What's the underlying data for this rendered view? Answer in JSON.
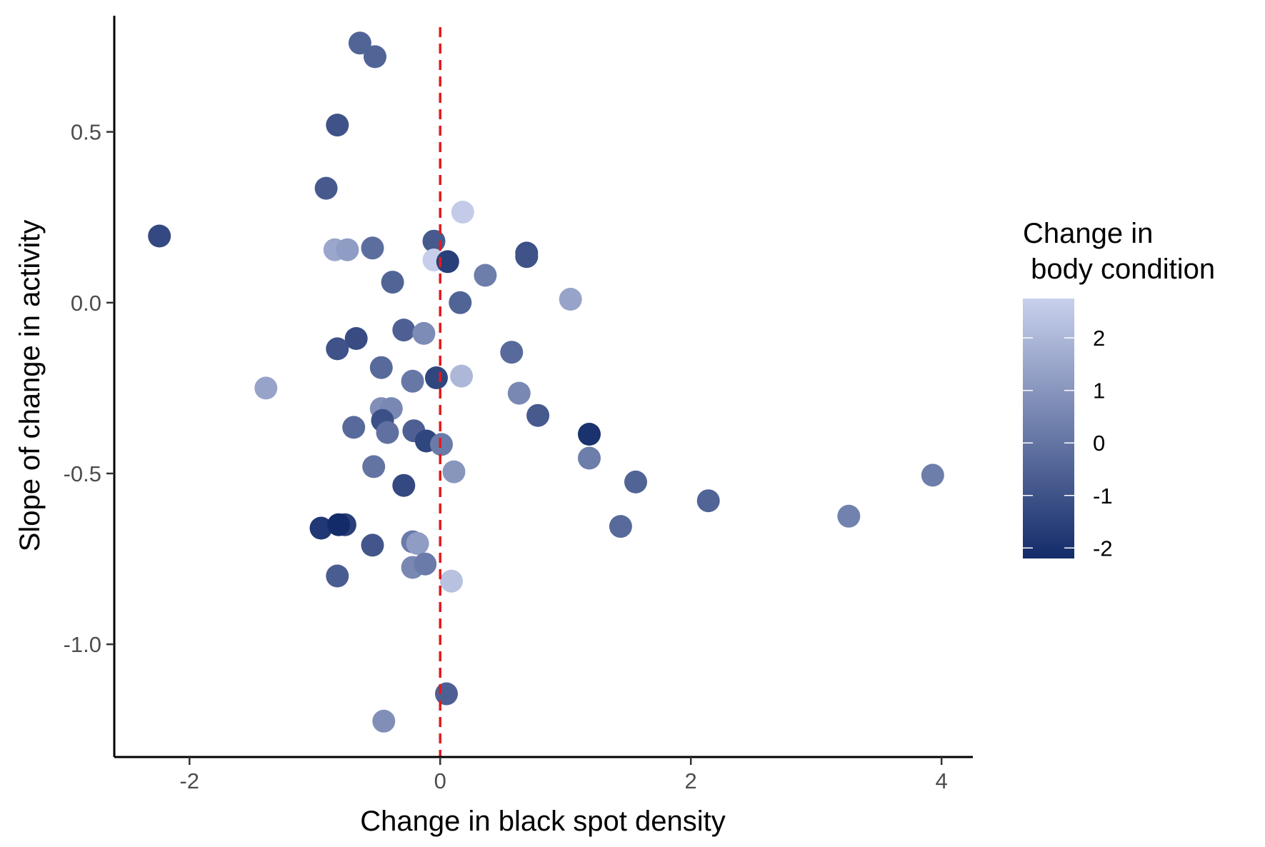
{
  "chart_data": {
    "type": "scatter",
    "xlabel": "Change in black spot density",
    "ylabel": "Slope of change in activity",
    "xlim": [
      -2.6,
      4.25
    ],
    "ylim": [
      -1.33,
      0.84
    ],
    "x_ticks": [
      -2,
      0,
      2,
      4
    ],
    "x_tick_labels": [
      "-2",
      "0",
      "2",
      "4"
    ],
    "y_ticks": [
      -1.0,
      -0.5,
      0.0,
      0.5
    ],
    "y_tick_labels": [
      "-1.0",
      "-0.5",
      "0.0",
      "0.5"
    ],
    "grid": false,
    "reference_line": {
      "axis": "x",
      "value": 0,
      "style": "dashed",
      "color": "#e41a1c"
    },
    "legend": {
      "title_lines": [
        "Change in",
        " body condition"
      ],
      "placement": "right",
      "type": "colorbar",
      "range": [
        -2.2,
        2.75
      ],
      "ticks": [
        2,
        1,
        0,
        -1,
        -2
      ],
      "tick_labels": [
        "2",
        "1",
        "0",
        "-1",
        "-2"
      ],
      "color_low": "#132b69",
      "color_high": "#c8d0ec"
    },
    "points": [
      {
        "x": -0.64,
        "y": 0.76,
        "c": -0.5
      },
      {
        "x": -0.52,
        "y": 0.72,
        "c": -0.5
      },
      {
        "x": -0.82,
        "y": 0.52,
        "c": -1.0
      },
      {
        "x": -0.91,
        "y": 0.335,
        "c": -0.8
      },
      {
        "x": -2.24,
        "y": 0.195,
        "c": -1.3
      },
      {
        "x": -0.84,
        "y": 0.155,
        "c": 1.5
      },
      {
        "x": -0.74,
        "y": 0.155,
        "c": 1.2
      },
      {
        "x": -0.54,
        "y": 0.16,
        "c": -0.2
      },
      {
        "x": -0.38,
        "y": 0.06,
        "c": -0.5
      },
      {
        "x": -0.05,
        "y": 0.18,
        "c": -0.8
      },
      {
        "x": 0.18,
        "y": 0.265,
        "c": 2.6
      },
      {
        "x": -0.05,
        "y": 0.125,
        "c": 2.7
      },
      {
        "x": 0.06,
        "y": 0.12,
        "c": -1.6
      },
      {
        "x": 0.36,
        "y": 0.08,
        "c": 0.3
      },
      {
        "x": 0.69,
        "y": 0.145,
        "c": -1.1
      },
      {
        "x": 0.69,
        "y": 0.135,
        "c": -1.0
      },
      {
        "x": 1.04,
        "y": 0.01,
        "c": 1.4
      },
      {
        "x": 0.16,
        "y": 0.0,
        "c": -0.5
      },
      {
        "x": -0.29,
        "y": -0.08,
        "c": -0.6
      },
      {
        "x": -0.13,
        "y": -0.09,
        "c": 0.7
      },
      {
        "x": -0.67,
        "y": -0.105,
        "c": -1.2
      },
      {
        "x": -0.82,
        "y": -0.135,
        "c": -1.0
      },
      {
        "x": 0.57,
        "y": -0.145,
        "c": -0.3
      },
      {
        "x": -0.47,
        "y": -0.19,
        "c": -0.3
      },
      {
        "x": -0.22,
        "y": -0.23,
        "c": 0.1
      },
      {
        "x": -0.03,
        "y": -0.22,
        "c": -1.4
      },
      {
        "x": 0.17,
        "y": -0.215,
        "c": 2.0
      },
      {
        "x": -1.39,
        "y": -0.25,
        "c": 1.4
      },
      {
        "x": -0.47,
        "y": -0.31,
        "c": 0.8
      },
      {
        "x": -0.39,
        "y": -0.31,
        "c": 0.6
      },
      {
        "x": 0.63,
        "y": -0.265,
        "c": 0.6
      },
      {
        "x": 0.78,
        "y": -0.33,
        "c": -0.8
      },
      {
        "x": -0.69,
        "y": -0.365,
        "c": -0.3
      },
      {
        "x": -0.46,
        "y": -0.345,
        "c": -1.1
      },
      {
        "x": -0.42,
        "y": -0.38,
        "c": -0.1
      },
      {
        "x": -0.21,
        "y": -0.375,
        "c": -0.6
      },
      {
        "x": -0.11,
        "y": -0.405,
        "c": -1.4
      },
      {
        "x": 0.01,
        "y": -0.415,
        "c": 0.2
      },
      {
        "x": 1.19,
        "y": -0.385,
        "c": -2.0
      },
      {
        "x": -0.53,
        "y": -0.48,
        "c": 0.0
      },
      {
        "x": 0.11,
        "y": -0.495,
        "c": 1.0
      },
      {
        "x": -0.29,
        "y": -0.535,
        "c": -1.3
      },
      {
        "x": 1.19,
        "y": -0.455,
        "c": 0.3
      },
      {
        "x": 1.56,
        "y": -0.525,
        "c": -0.5
      },
      {
        "x": 2.14,
        "y": -0.58,
        "c": -0.5
      },
      {
        "x": 3.93,
        "y": -0.505,
        "c": 0.3
      },
      {
        "x": 3.26,
        "y": -0.625,
        "c": 0.4
      },
      {
        "x": -0.95,
        "y": -0.66,
        "c": -1.8
      },
      {
        "x": -0.76,
        "y": -0.65,
        "c": -1.6
      },
      {
        "x": -0.81,
        "y": -0.65,
        "c": -2.2
      },
      {
        "x": -0.54,
        "y": -0.71,
        "c": -0.9
      },
      {
        "x": -0.22,
        "y": -0.7,
        "c": 0.2
      },
      {
        "x": -0.18,
        "y": -0.705,
        "c": 1.2
      },
      {
        "x": -0.22,
        "y": -0.775,
        "c": 0.6
      },
      {
        "x": -0.12,
        "y": -0.765,
        "c": 0.2
      },
      {
        "x": -0.82,
        "y": -0.8,
        "c": -0.7
      },
      {
        "x": 1.44,
        "y": -0.655,
        "c": -0.3
      },
      {
        "x": 0.09,
        "y": -0.815,
        "c": 2.3
      },
      {
        "x": 0.05,
        "y": -1.145,
        "c": -0.6
      },
      {
        "x": -0.45,
        "y": -1.225,
        "c": 0.8
      }
    ]
  }
}
